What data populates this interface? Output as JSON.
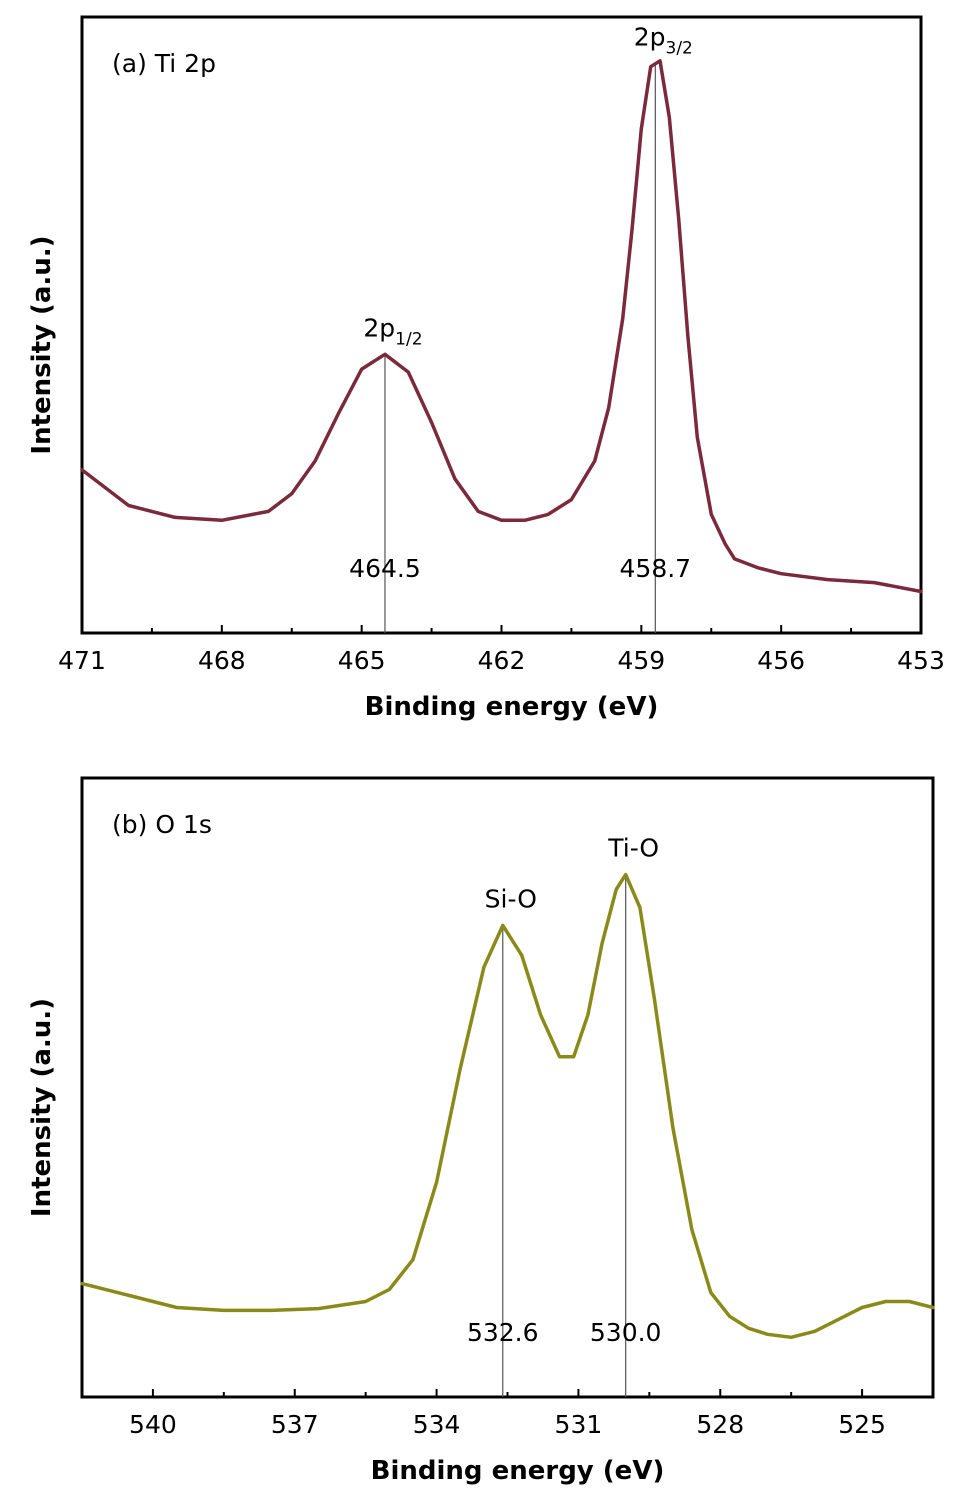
{
  "chart_data": [
    {
      "type": "line",
      "panel_label": "(a) Ti 2p",
      "xlabel": "Binding energy  (eV)",
      "ylabel": "Intensity  (a.u.)",
      "xlim": [
        471,
        453
      ],
      "ylim": [
        0,
        1
      ],
      "x_ticks": [
        471,
        468,
        465,
        462,
        459,
        456,
        453
      ],
      "x_tick_labels": [
        "471",
        "468",
        "465",
        "462",
        "459",
        "456",
        "453"
      ],
      "x_minor_ticks": [
        469.5,
        466.5,
        463.5,
        460.5,
        457.5,
        454.5
      ],
      "line_color": "#7a2a3c",
      "series": [
        {
          "x": [
            471,
            470,
            469,
            468,
            467,
            466.5,
            466,
            465.5,
            465,
            464.5,
            464,
            463.5,
            463,
            462.5,
            462,
            461.5,
            461,
            460.5,
            460,
            459.7,
            459.4,
            459.2,
            459.0,
            458.8,
            458.6,
            458.4,
            458.2,
            458.0,
            457.8,
            457.5,
            457.2,
            457.0,
            456.5,
            456,
            455,
            454,
            453
          ],
          "y": [
            0.275,
            0.215,
            0.195,
            0.19,
            0.205,
            0.235,
            0.29,
            0.37,
            0.445,
            0.47,
            0.44,
            0.355,
            0.26,
            0.205,
            0.19,
            0.19,
            0.2,
            0.225,
            0.29,
            0.38,
            0.53,
            0.68,
            0.85,
            0.955,
            0.965,
            0.87,
            0.7,
            0.5,
            0.33,
            0.2,
            0.15,
            0.125,
            0.11,
            0.1,
            0.09,
            0.085,
            0.07
          ]
        }
      ],
      "annotations": [
        {
          "label": "2p",
          "subscript": "1/2",
          "x": 464.5,
          "value": "464.5"
        },
        {
          "label": "2p",
          "subscript": "3/2",
          "x": 458.7,
          "value": "458.7"
        }
      ]
    },
    {
      "type": "line",
      "panel_label": "(b) O 1s",
      "xlabel": "Binding energy  (eV)",
      "ylabel": "Intensity  (a.u.)",
      "xlim": [
        541.5,
        523.5
      ],
      "ylim": [
        0,
        1
      ],
      "x_ticks": [
        540,
        537,
        534,
        531,
        528,
        525
      ],
      "x_tick_labels": [
        "540",
        "537",
        "534",
        "531",
        "528",
        "525"
      ],
      "x_minor_ticks": [
        538.5,
        535.5,
        532.5,
        529.5,
        526.5
      ],
      "line_color": "#8a8a1a",
      "series": [
        {
          "x": [
            541.5,
            540.5,
            539.5,
            538.5,
            537.5,
            536.5,
            535.5,
            535,
            534.5,
            534,
            533.5,
            533,
            532.6,
            532.2,
            531.8,
            531.4,
            531.1,
            530.8,
            530.5,
            530.2,
            530.0,
            529.7,
            529.4,
            529.0,
            528.6,
            528.2,
            527.8,
            527.4,
            527,
            526.5,
            526,
            525.5,
            525,
            524.5,
            524,
            523.5
          ],
          "y": [
            0.19,
            0.17,
            0.15,
            0.145,
            0.145,
            0.148,
            0.16,
            0.18,
            0.23,
            0.36,
            0.55,
            0.72,
            0.79,
            0.74,
            0.64,
            0.57,
            0.57,
            0.64,
            0.76,
            0.85,
            0.875,
            0.82,
            0.67,
            0.45,
            0.28,
            0.175,
            0.135,
            0.115,
            0.105,
            0.1,
            0.11,
            0.13,
            0.15,
            0.16,
            0.16,
            0.15
          ]
        }
      ],
      "annotations": [
        {
          "label": "Si-O",
          "x": 532.6,
          "value": "532.6"
        },
        {
          "label": "Ti-O",
          "x": 530.0,
          "value": "530.0"
        }
      ]
    }
  ]
}
